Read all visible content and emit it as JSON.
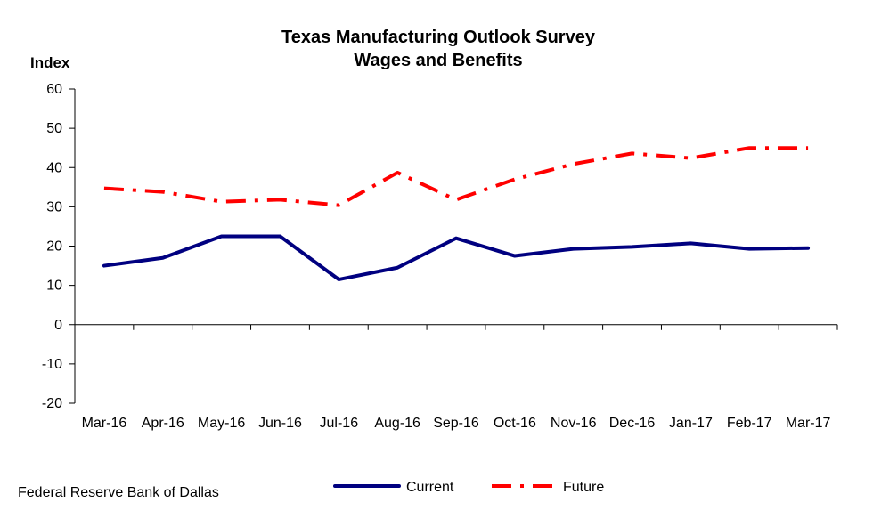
{
  "chart_data": {
    "type": "line",
    "title": "Texas Manufacturing Outlook Survey",
    "subtitle": "Wages and Benefits",
    "ylabel": "Index",
    "xlabel": "",
    "ylim": [
      -20,
      60
    ],
    "yticks": [
      -20,
      -10,
      0,
      10,
      20,
      30,
      40,
      50,
      60
    ],
    "grid": false,
    "legend_position": "bottom",
    "categories": [
      "Mar-16",
      "Apr-16",
      "May-16",
      "Jun-16",
      "Jul-16",
      "Aug-16",
      "Sep-16",
      "Oct-16",
      "Nov-16",
      "Dec-16",
      "Jan-17",
      "Feb-17",
      "Mar-17"
    ],
    "series": [
      {
        "name": "Current",
        "color": "#000080",
        "style": "solid",
        "values": [
          15.0,
          17.0,
          22.5,
          22.5,
          11.5,
          14.5,
          22.0,
          17.5,
          19.3,
          19.8,
          20.7,
          19.3,
          19.5
        ]
      },
      {
        "name": "Future",
        "color": "#FF0000",
        "style": "dash-dot",
        "values": [
          34.7,
          33.8,
          31.3,
          31.8,
          30.4,
          38.7,
          31.8,
          37.0,
          40.9,
          43.6,
          42.4,
          45.0,
          45.0
        ]
      }
    ]
  },
  "footer": {
    "source": "Federal Reserve Bank of Dallas"
  }
}
